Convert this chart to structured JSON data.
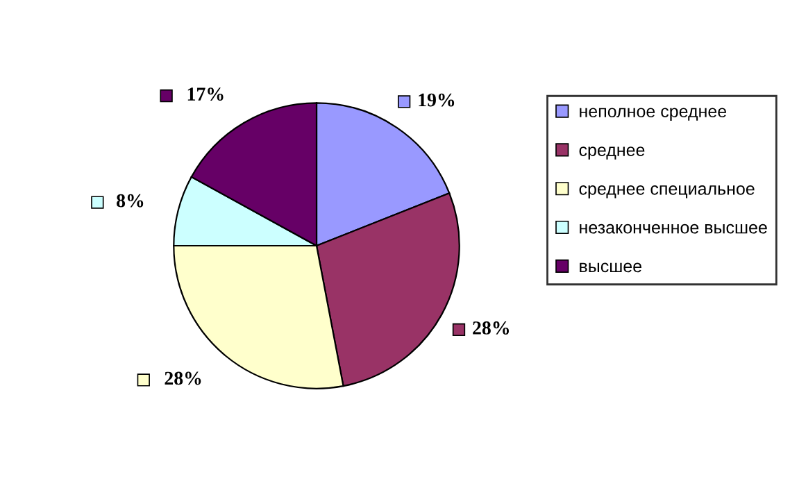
{
  "chart_data": {
    "type": "pie",
    "categories": [
      "неполное среднее",
      "среднее",
      "среднее специальное",
      "незаконченное высшее",
      "высшее"
    ],
    "values": [
      19,
      28,
      28,
      8,
      17
    ],
    "value_labels": [
      "19%",
      "28%",
      "28%",
      "8%",
      "17%"
    ],
    "colors": [
      "#9999ff",
      "#993366",
      "#ffffcc",
      "#ccffff",
      "#660066"
    ],
    "legend": "right"
  }
}
